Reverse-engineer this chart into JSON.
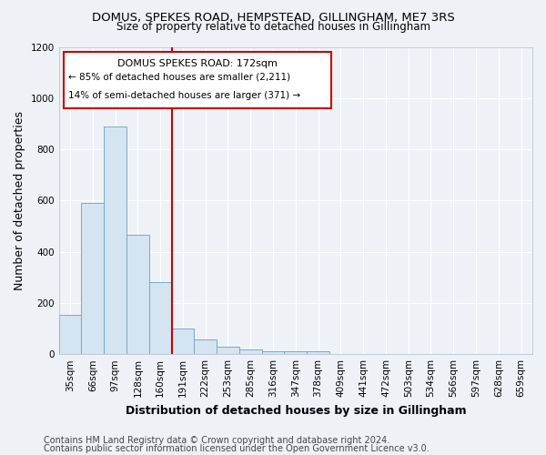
{
  "title": "DOMUS, SPEKES ROAD, HEMPSTEAD, GILLINGHAM, ME7 3RS",
  "subtitle": "Size of property relative to detached houses in Gillingham",
  "xlabel": "Distribution of detached houses by size in Gillingham",
  "ylabel": "Number of detached properties",
  "categories": [
    "35sqm",
    "66sqm",
    "97sqm",
    "128sqm",
    "160sqm",
    "191sqm",
    "222sqm",
    "253sqm",
    "285sqm",
    "316sqm",
    "347sqm",
    "378sqm",
    "409sqm",
    "441sqm",
    "472sqm",
    "503sqm",
    "534sqm",
    "566sqm",
    "597sqm",
    "628sqm",
    "659sqm"
  ],
  "values": [
    155,
    590,
    890,
    465,
    280,
    100,
    57,
    28,
    18,
    10,
    10,
    10,
    0,
    0,
    0,
    0,
    0,
    0,
    0,
    0,
    0
  ],
  "bar_color": "#d4e4f0",
  "bar_edge_color": "#7aaac8",
  "vline_label": "DOMUS SPEKES ROAD: 172sqm",
  "annotation_line1": "← 85% of detached houses are smaller (2,211)",
  "annotation_line2": "14% of semi-detached houses are larger (371) →",
  "annotation_box_color": "#cc0000",
  "ylim": [
    0,
    1200
  ],
  "yticks": [
    0,
    200,
    400,
    600,
    800,
    1000,
    1200
  ],
  "footer1": "Contains HM Land Registry data © Crown copyright and database right 2024.",
  "footer2": "Contains public sector information licensed under the Open Government Licence v3.0.",
  "background_color": "#eef2f7",
  "grid_color": "#ffffff",
  "title_fontsize": 9.5,
  "subtitle_fontsize": 8.5,
  "axis_label_fontsize": 9,
  "tick_fontsize": 7.5,
  "footer_fontsize": 7
}
